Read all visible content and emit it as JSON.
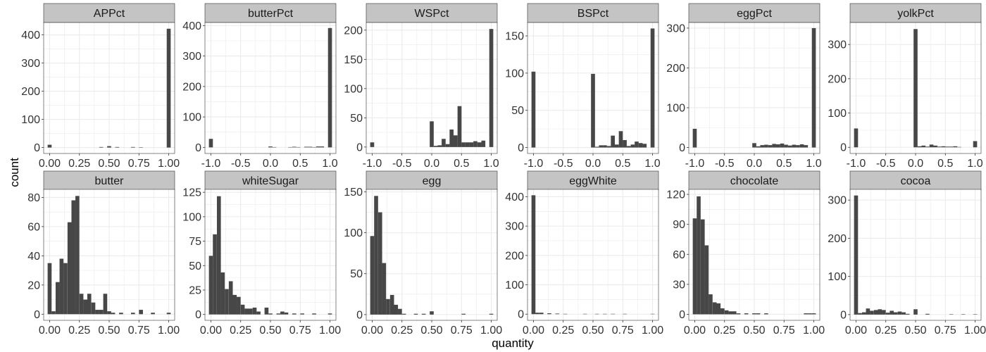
{
  "figure": {
    "xlabel": "quantity",
    "ylabel": "count",
    "colors": {
      "bar": "#474747",
      "strip": "#c4c4c4",
      "grid": "#ebebeb",
      "panel_border": "#333333",
      "text": "#333333"
    }
  },
  "chart_data": [
    {
      "type": "bar",
      "title": "APPct",
      "xlim": [
        -0.05,
        1.05
      ],
      "ylim": [
        -21,
        444
      ],
      "x_ticks": [
        0,
        0.25,
        0.5,
        0.75,
        1
      ],
      "x_tick_labels": [
        "0.00",
        "0.25",
        "0.50",
        "0.75",
        "1.00"
      ],
      "y_ticks": [
        0,
        100,
        200,
        300,
        400
      ],
      "y_tick_labels": [
        "0",
        "100",
        "200",
        "300",
        "400"
      ],
      "bin_width": 0.0333,
      "bins": [
        [
          0,
          10
        ],
        [
          0.433,
          2
        ],
        [
          0.5,
          5
        ],
        [
          0.567,
          2
        ],
        [
          0.7,
          2
        ],
        [
          0.767,
          1
        ],
        [
          1,
          422
        ]
      ]
    },
    {
      "type": "bar",
      "title": "butterPct",
      "xlim": [
        -1.1,
        1.1
      ],
      "ylim": [
        -20,
        410
      ],
      "x_ticks": [
        -1,
        -0.5,
        0,
        0.5,
        1
      ],
      "x_tick_labels": [
        "-1.0",
        "-0.5",
        "0.0",
        "0.5",
        "1.0"
      ],
      "y_ticks": [
        0,
        100,
        200,
        300,
        400
      ],
      "y_tick_labels": [
        "0",
        "100",
        "200",
        "300",
        "400"
      ],
      "bin_width": 0.0667,
      "bins": [
        [
          -1,
          28
        ],
        [
          0,
          3
        ],
        [
          0.067,
          1
        ],
        [
          0.333,
          1
        ],
        [
          0.4,
          2
        ],
        [
          0.467,
          1
        ],
        [
          0.6,
          2
        ],
        [
          0.667,
          2
        ],
        [
          0.733,
          1
        ],
        [
          0.8,
          3
        ],
        [
          0.867,
          3
        ],
        [
          1,
          392
        ]
      ]
    },
    {
      "type": "bar",
      "title": "WSPct",
      "xlim": [
        -1.1,
        1.1
      ],
      "ylim": [
        -11,
        213
      ],
      "x_ticks": [
        -1,
        -0.5,
        0,
        0.5,
        1
      ],
      "x_tick_labels": [
        "-1.0",
        "-0.5",
        "0.0",
        "0.5",
        "1.0"
      ],
      "y_ticks": [
        0,
        50,
        100,
        150,
        200
      ],
      "y_tick_labels": [
        "0",
        "50",
        "100",
        "150",
        "200"
      ],
      "bin_width": 0.0667,
      "bins": [
        [
          -1,
          8
        ],
        [
          0,
          44
        ],
        [
          0.067,
          2
        ],
        [
          0.133,
          3
        ],
        [
          0.2,
          14
        ],
        [
          0.267,
          5
        ],
        [
          0.333,
          30
        ],
        [
          0.4,
          20
        ],
        [
          0.467,
          70
        ],
        [
          0.533,
          8
        ],
        [
          0.6,
          8
        ],
        [
          0.667,
          8
        ],
        [
          0.733,
          10
        ],
        [
          0.8,
          8
        ],
        [
          0.867,
          11
        ],
        [
          1,
          202
        ]
      ]
    },
    {
      "type": "bar",
      "title": "BSPct",
      "xlim": [
        -1.1,
        1.1
      ],
      "ylim": [
        -8,
        168
      ],
      "x_ticks": [
        -1,
        -0.5,
        0,
        0.5,
        1
      ],
      "x_tick_labels": [
        "-1.0",
        "-0.5",
        "0.0",
        "0.5",
        "1.0"
      ],
      "y_ticks": [
        0,
        50,
        100,
        150
      ],
      "y_tick_labels": [
        "0",
        "50",
        "100",
        "150"
      ],
      "bin_width": 0.0667,
      "bins": [
        [
          -1,
          102
        ],
        [
          0,
          99
        ],
        [
          0.067,
          1
        ],
        [
          0.133,
          3
        ],
        [
          0.2,
          3
        ],
        [
          0.267,
          2
        ],
        [
          0.333,
          16
        ],
        [
          0.4,
          4
        ],
        [
          0.467,
          22
        ],
        [
          0.533,
          10
        ],
        [
          0.6,
          2
        ],
        [
          0.667,
          4
        ],
        [
          0.733,
          8
        ],
        [
          0.8,
          6
        ],
        [
          0.867,
          5
        ],
        [
          1,
          160
        ]
      ]
    },
    {
      "type": "bar",
      "title": "eggPct",
      "xlim": [
        -1.1,
        1.1
      ],
      "ylim": [
        -15,
        314
      ],
      "x_ticks": [
        -1,
        -0.5,
        0,
        0.5,
        1
      ],
      "x_tick_labels": [
        "-1.0",
        "-0.5",
        "0.0",
        "0.5",
        "1.0"
      ],
      "y_ticks": [
        0,
        100,
        200,
        300
      ],
      "y_tick_labels": [
        "0",
        "100",
        "200",
        "300"
      ],
      "bin_width": 0.0667,
      "bins": [
        [
          -1,
          47
        ],
        [
          0,
          11
        ],
        [
          0.067,
          3
        ],
        [
          0.133,
          6
        ],
        [
          0.2,
          7
        ],
        [
          0.267,
          6
        ],
        [
          0.333,
          9
        ],
        [
          0.4,
          8
        ],
        [
          0.467,
          10
        ],
        [
          0.533,
          7
        ],
        [
          0.6,
          5
        ],
        [
          0.667,
          7
        ],
        [
          0.733,
          6
        ],
        [
          0.8,
          8
        ],
        [
          0.867,
          6
        ],
        [
          1,
          300
        ]
      ]
    },
    {
      "type": "bar",
      "title": "yolkPct",
      "xlim": [
        -1.1,
        1.1
      ],
      "ylim": [
        -18,
        364
      ],
      "x_ticks": [
        -1,
        -0.5,
        0,
        0.5,
        1
      ],
      "x_tick_labels": [
        "-1.0",
        "-0.5",
        "0.0",
        "0.5",
        "1.0"
      ],
      "y_ticks": [
        0,
        100,
        200,
        300
      ],
      "y_tick_labels": [
        "0",
        "100",
        "200",
        "300"
      ],
      "bin_width": 0.0667,
      "bins": [
        [
          -1,
          55
        ],
        [
          0,
          345
        ],
        [
          0.067,
          3
        ],
        [
          0.133,
          5
        ],
        [
          0.2,
          2
        ],
        [
          0.267,
          8
        ],
        [
          0.333,
          5
        ],
        [
          0.4,
          2
        ],
        [
          0.467,
          3
        ],
        [
          0.533,
          2
        ],
        [
          0.6,
          2
        ],
        [
          0.667,
          3
        ],
        [
          0.733,
          1
        ],
        [
          1,
          18
        ]
      ]
    },
    {
      "type": "bar",
      "title": "butter",
      "xlim": [
        -0.05,
        1.05
      ],
      "ylim": [
        -4.2,
        85.5
      ],
      "x_ticks": [
        0,
        0.25,
        0.5,
        0.75,
        1
      ],
      "x_tick_labels": [
        "0.00",
        "0.25",
        "0.50",
        "0.75",
        "1.00"
      ],
      "y_ticks": [
        0,
        20,
        40,
        60,
        80
      ],
      "y_tick_labels": [
        "0",
        "20",
        "40",
        "60",
        "80"
      ],
      "bin_width": 0.0333,
      "bins": [
        [
          0,
          35
        ],
        [
          0.033,
          2
        ],
        [
          0.067,
          22
        ],
        [
          0.1,
          38
        ],
        [
          0.133,
          35
        ],
        [
          0.167,
          63
        ],
        [
          0.2,
          78
        ],
        [
          0.233,
          81
        ],
        [
          0.267,
          14
        ],
        [
          0.3,
          10
        ],
        [
          0.333,
          14
        ],
        [
          0.367,
          8
        ],
        [
          0.4,
          3
        ],
        [
          0.433,
          3
        ],
        [
          0.467,
          14
        ],
        [
          0.5,
          2
        ],
        [
          0.533,
          1
        ],
        [
          0.6,
          1
        ],
        [
          0.7,
          1
        ],
        [
          0.767,
          3
        ],
        [
          0.867,
          1
        ],
        [
          1,
          1
        ]
      ]
    },
    {
      "type": "bar",
      "title": "whiteSugar",
      "xlim": [
        -0.05,
        1.05
      ],
      "ylim": [
        -6,
        128
      ],
      "x_ticks": [
        0,
        0.25,
        0.5,
        0.75,
        1
      ],
      "x_tick_labels": [
        "0.00",
        "0.25",
        "0.50",
        "0.75",
        "1.00"
      ],
      "y_ticks": [
        0,
        25,
        50,
        75,
        100,
        125
      ],
      "y_tick_labels": [
        "0",
        "25",
        "50",
        "75",
        "100",
        "125"
      ],
      "bin_width": 0.0333,
      "bins": [
        [
          0,
          60
        ],
        [
          0.033,
          82
        ],
        [
          0.067,
          121
        ],
        [
          0.1,
          43
        ],
        [
          0.133,
          26
        ],
        [
          0.167,
          34
        ],
        [
          0.2,
          20
        ],
        [
          0.233,
          18
        ],
        [
          0.267,
          10
        ],
        [
          0.3,
          6
        ],
        [
          0.333,
          6
        ],
        [
          0.367,
          7
        ],
        [
          0.4,
          3
        ],
        [
          0.467,
          7
        ],
        [
          0.5,
          1
        ],
        [
          0.567,
          1
        ],
        [
          0.6,
          3
        ],
        [
          0.633,
          2
        ],
        [
          0.7,
          1
        ],
        [
          0.767,
          1
        ],
        [
          0.867,
          1
        ],
        [
          1,
          1
        ]
      ]
    },
    {
      "type": "bar",
      "title": "egg",
      "xlim": [
        -0.05,
        1.05
      ],
      "ylim": [
        -7,
        153
      ],
      "x_ticks": [
        0,
        0.25,
        0.5,
        0.75,
        1
      ],
      "x_tick_labels": [
        "0.00",
        "0.25",
        "0.50",
        "0.75",
        "1.00"
      ],
      "y_ticks": [
        0,
        50,
        100,
        150
      ],
      "y_tick_labels": [
        "0",
        "50",
        "100",
        "150"
      ],
      "bin_width": 0.0333,
      "bins": [
        [
          0,
          96
        ],
        [
          0.033,
          145
        ],
        [
          0.067,
          125
        ],
        [
          0.1,
          63
        ],
        [
          0.133,
          19
        ],
        [
          0.167,
          24
        ],
        [
          0.2,
          12
        ],
        [
          0.233,
          7
        ],
        [
          0.267,
          1
        ],
        [
          0.367,
          1
        ],
        [
          0.433,
          1
        ],
        [
          0.5,
          4
        ],
        [
          0.767,
          1
        ],
        [
          1,
          1
        ]
      ]
    },
    {
      "type": "bar",
      "title": "eggWhite",
      "xlim": [
        -0.05,
        1.05
      ],
      "ylim": [
        -21,
        425
      ],
      "x_ticks": [
        0,
        0.25,
        0.5,
        0.75,
        1
      ],
      "x_tick_labels": [
        "0.00",
        "0.25",
        "0.50",
        "0.75",
        "1.00"
      ],
      "y_ticks": [
        0,
        100,
        200,
        300,
        400
      ],
      "y_tick_labels": [
        "0",
        "100",
        "200",
        "300",
        "400"
      ],
      "bin_width": 0.0333,
      "bins": [
        [
          0,
          405
        ],
        [
          0.033,
          5
        ],
        [
          0.067,
          5
        ],
        [
          0.133,
          3
        ],
        [
          0.2,
          2
        ],
        [
          0.267,
          1
        ],
        [
          0.433,
          1
        ],
        [
          0.533,
          1
        ],
        [
          0.6,
          1
        ],
        [
          0.667,
          1
        ],
        [
          0.767,
          1
        ],
        [
          1,
          1
        ]
      ]
    },
    {
      "type": "bar",
      "title": "chocolate",
      "xlim": [
        -0.05,
        1.05
      ],
      "ylim": [
        -6,
        125
      ],
      "x_ticks": [
        0,
        0.25,
        0.5,
        0.75,
        1
      ],
      "x_tick_labels": [
        "0.00",
        "0.25",
        "0.50",
        "0.75",
        "1.00"
      ],
      "y_ticks": [
        0,
        30,
        60,
        90,
        120
      ],
      "y_tick_labels": [
        "0",
        "30",
        "60",
        "90",
        "120"
      ],
      "bin_width": 0.0333,
      "bins": [
        [
          0,
          96
        ],
        [
          0.033,
          118
        ],
        [
          0.067,
          95
        ],
        [
          0.1,
          69
        ],
        [
          0.133,
          20
        ],
        [
          0.167,
          12
        ],
        [
          0.2,
          11
        ],
        [
          0.233,
          6
        ],
        [
          0.267,
          4
        ],
        [
          0.3,
          3
        ],
        [
          0.333,
          3
        ],
        [
          0.367,
          1
        ],
        [
          0.433,
          1
        ],
        [
          0.5,
          1
        ],
        [
          0.533,
          1
        ],
        [
          0.6,
          1
        ],
        [
          0.933,
          1
        ],
        [
          0.967,
          1
        ],
        [
          1,
          1
        ]
      ]
    },
    {
      "type": "bar",
      "title": "cocoa",
      "xlim": [
        -0.05,
        1.05
      ],
      "ylim": [
        -15,
        328
      ],
      "x_ticks": [
        0,
        0.25,
        0.5,
        0.75,
        1
      ],
      "x_tick_labels": [
        "0.00",
        "0.25",
        "0.50",
        "0.75",
        "1.00"
      ],
      "y_ticks": [
        0,
        100,
        200,
        300
      ],
      "y_tick_labels": [
        "0",
        "100",
        "200",
        "300"
      ],
      "bin_width": 0.0333,
      "bins": [
        [
          0,
          312
        ],
        [
          0.033,
          4
        ],
        [
          0.067,
          6
        ],
        [
          0.1,
          16
        ],
        [
          0.133,
          10
        ],
        [
          0.167,
          12
        ],
        [
          0.2,
          14
        ],
        [
          0.233,
          12
        ],
        [
          0.267,
          5
        ],
        [
          0.3,
          10
        ],
        [
          0.333,
          6
        ],
        [
          0.367,
          8
        ],
        [
          0.4,
          6
        ],
        [
          0.433,
          2
        ],
        [
          0.5,
          14
        ],
        [
          0.6,
          2
        ],
        [
          0.8,
          1
        ],
        [
          0.9,
          1
        ],
        [
          1,
          1
        ]
      ]
    }
  ]
}
